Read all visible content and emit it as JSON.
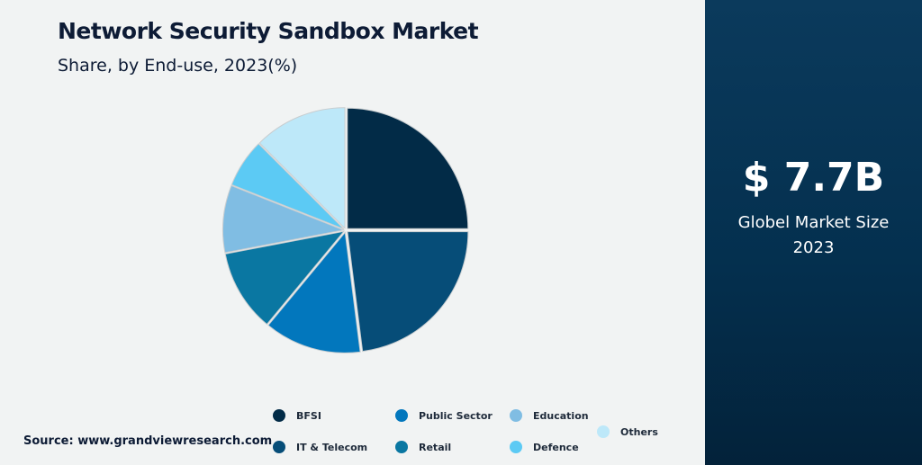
{
  "header": {
    "title": "Network Security Sandbox Market",
    "subtitle": "Share, by End-use, 2023(%)"
  },
  "chart_data": {
    "type": "pie",
    "title": "Network Security Sandbox Market",
    "subtitle": "Share, by End-use, 2023(%)",
    "legend_position": "bottom",
    "slices": [
      {
        "name": "BFSI",
        "value": 25,
        "color": "#022b47"
      },
      {
        "name": "IT & Telecom",
        "value": 23,
        "color": "#064d78"
      },
      {
        "name": "Public Sector",
        "value": 13,
        "color": "#0277bd"
      },
      {
        "name": "Retail",
        "value": 11,
        "color": "#0a77a2"
      },
      {
        "name": "Education",
        "value": 9,
        "color": "#80bde3"
      },
      {
        "name": "Defence",
        "value": 6.5,
        "color": "#5ccaf4"
      },
      {
        "name": "Others",
        "value": 12.5,
        "color": "#bde8f9"
      }
    ]
  },
  "source": "Source: www.grandviewresearch.com",
  "panel": {
    "value": "$ 7.7B",
    "label_line1": "Globel Market Size",
    "label_line2": "2023"
  }
}
